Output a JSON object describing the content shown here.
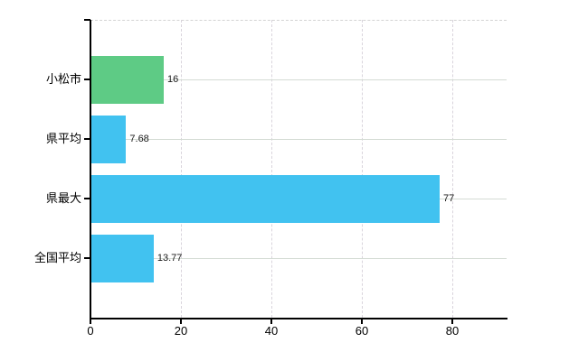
{
  "chart_data": {
    "type": "bar",
    "orientation": "horizontal",
    "title": "",
    "xlabel": "",
    "ylabel": "",
    "categories": [
      "小松市",
      "県平均",
      "県最大",
      "全国平均"
    ],
    "values": [
      16,
      7.68,
      77,
      13.77
    ],
    "value_labels": [
      "16",
      "7.68",
      "77",
      "13.77"
    ],
    "bar_colors": [
      "#5ecb85",
      "#41c2f0",
      "#41c2f0",
      "#41c2f0"
    ],
    "x_ticks": [
      0,
      20,
      40,
      60,
      80
    ],
    "xlim": [
      0,
      92
    ],
    "grid": true,
    "legend": false,
    "colors": {
      "highlight_bar": "#5ecb85",
      "default_bar": "#41c2f0",
      "axis": "#000000",
      "gridline_horizontal": "#d4dbd4",
      "gridline_vertical": "#d9d4dc",
      "background": "#ffffff"
    }
  }
}
